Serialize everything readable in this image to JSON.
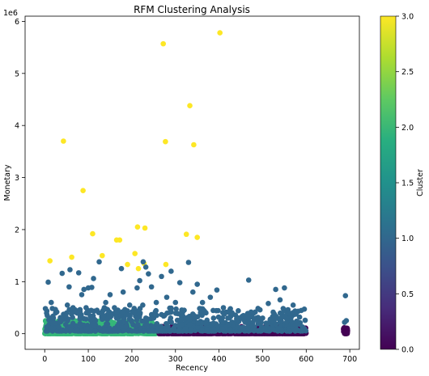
{
  "chart_data": {
    "type": "scatter",
    "title": "RFM Clustering Analysis",
    "xlabel": "Recency",
    "ylabel": "Monetary",
    "y_multiplier_label": "1e6",
    "xlim": [
      -45,
      722
    ],
    "ylim": [
      -0.3,
      6.1
    ],
    "xticks": [
      0,
      100,
      200,
      300,
      400,
      500,
      600,
      700
    ],
    "yticks": [
      0,
      1,
      2,
      3,
      4,
      5,
      6
    ],
    "grid": false,
    "colormap": "viridis",
    "colorbar": {
      "label": "Cluster",
      "range": [
        0.0,
        3.0
      ],
      "ticks": [
        "0.0",
        "0.5",
        "1.0",
        "1.5",
        "2.0",
        "2.5",
        "3.0"
      ]
    },
    "clusters": [
      {
        "cluster": 0,
        "color": "#440154"
      },
      {
        "cluster": 1,
        "color": "#31688e"
      },
      {
        "cluster": 2,
        "color": "#35b779"
      },
      {
        "cluster": 3,
        "color": "#fde725"
      }
    ],
    "series": [
      {
        "cluster": 3,
        "points": [
          [
            12,
            1.4
          ],
          [
            43,
            3.7
          ],
          [
            62,
            1.47
          ],
          [
            88,
            2.75
          ],
          [
            110,
            1.92
          ],
          [
            132,
            1.5
          ],
          [
            165,
            1.8
          ],
          [
            172,
            1.8
          ],
          [
            190,
            1.33
          ],
          [
            207,
            1.54
          ],
          [
            213,
            2.05
          ],
          [
            215,
            1.25
          ],
          [
            230,
            2.03
          ],
          [
            228,
            1.35
          ],
          [
            272,
            5.57
          ],
          [
            277,
            3.69
          ],
          [
            278,
            1.33
          ],
          [
            325,
            1.91
          ],
          [
            333,
            4.38
          ],
          [
            342,
            3.63
          ],
          [
            350,
            1.85
          ],
          [
            402,
            5.78
          ]
        ]
      },
      {
        "cluster": 1,
        "points": [
          [
            8,
            0.99
          ],
          [
            15,
            0.6
          ],
          [
            25,
            0.4
          ],
          [
            40,
            1.16
          ],
          [
            52,
            0.55
          ],
          [
            56,
            0.9
          ],
          [
            58,
            1.23
          ],
          [
            65,
            0.5
          ],
          [
            78,
            1.17
          ],
          [
            85,
            0.75
          ],
          [
            90,
            0.85
          ],
          [
            95,
            0.5
          ],
          [
            100,
            0.88
          ],
          [
            108,
            0.89
          ],
          [
            112,
            1.06
          ],
          [
            125,
            1.38
          ],
          [
            140,
            0.6
          ],
          [
            150,
            0.75
          ],
          [
            160,
            0.5
          ],
          [
            176,
            1.25
          ],
          [
            180,
            0.8
          ],
          [
            195,
            0.55
          ],
          [
            212,
            0.88
          ],
          [
            218,
            1.02
          ],
          [
            226,
            1.38
          ],
          [
            232,
            1.28
          ],
          [
            238,
            1.15
          ],
          [
            245,
            0.9
          ],
          [
            256,
            0.6
          ],
          [
            268,
            1.1
          ],
          [
            280,
            0.7
          ],
          [
            290,
            1.2
          ],
          [
            300,
            0.6
          ],
          [
            310,
            0.98
          ],
          [
            330,
            1.37
          ],
          [
            340,
            0.8
          ],
          [
            350,
            0.95
          ],
          [
            362,
            0.6
          ],
          [
            380,
            0.7
          ],
          [
            395,
            0.84
          ],
          [
            410,
            0.5
          ],
          [
            430,
            0.4
          ],
          [
            450,
            0.3
          ],
          [
            468,
            1.03
          ],
          [
            480,
            0.4
          ],
          [
            500,
            0.3
          ],
          [
            513,
            0.58
          ],
          [
            530,
            0.85
          ],
          [
            540,
            0.65
          ],
          [
            550,
            0.88
          ],
          [
            560,
            0.4
          ],
          [
            570,
            0.55
          ],
          [
            690,
            0.73
          ],
          [
            688,
            0.22
          ],
          [
            692,
            0.25
          ],
          [
            20,
            0.3
          ],
          [
            35,
            0.25
          ],
          [
            48,
            0.35
          ],
          [
            70,
            0.42
          ],
          [
            120,
            0.45
          ],
          [
            135,
            0.35
          ],
          [
            165,
            0.3
          ],
          [
            205,
            0.4
          ],
          [
            225,
            0.55
          ],
          [
            250,
            0.3
          ],
          [
            275,
            0.35
          ],
          [
            320,
            0.45
          ],
          [
            345,
            0.3
          ],
          [
            370,
            0.4
          ],
          [
            420,
            0.3
          ],
          [
            460,
            0.22
          ],
          [
            490,
            0.2
          ],
          [
            520,
            0.25
          ],
          [
            555,
            0.22
          ],
          [
            585,
            0.18
          ]
        ]
      }
    ]
  }
}
